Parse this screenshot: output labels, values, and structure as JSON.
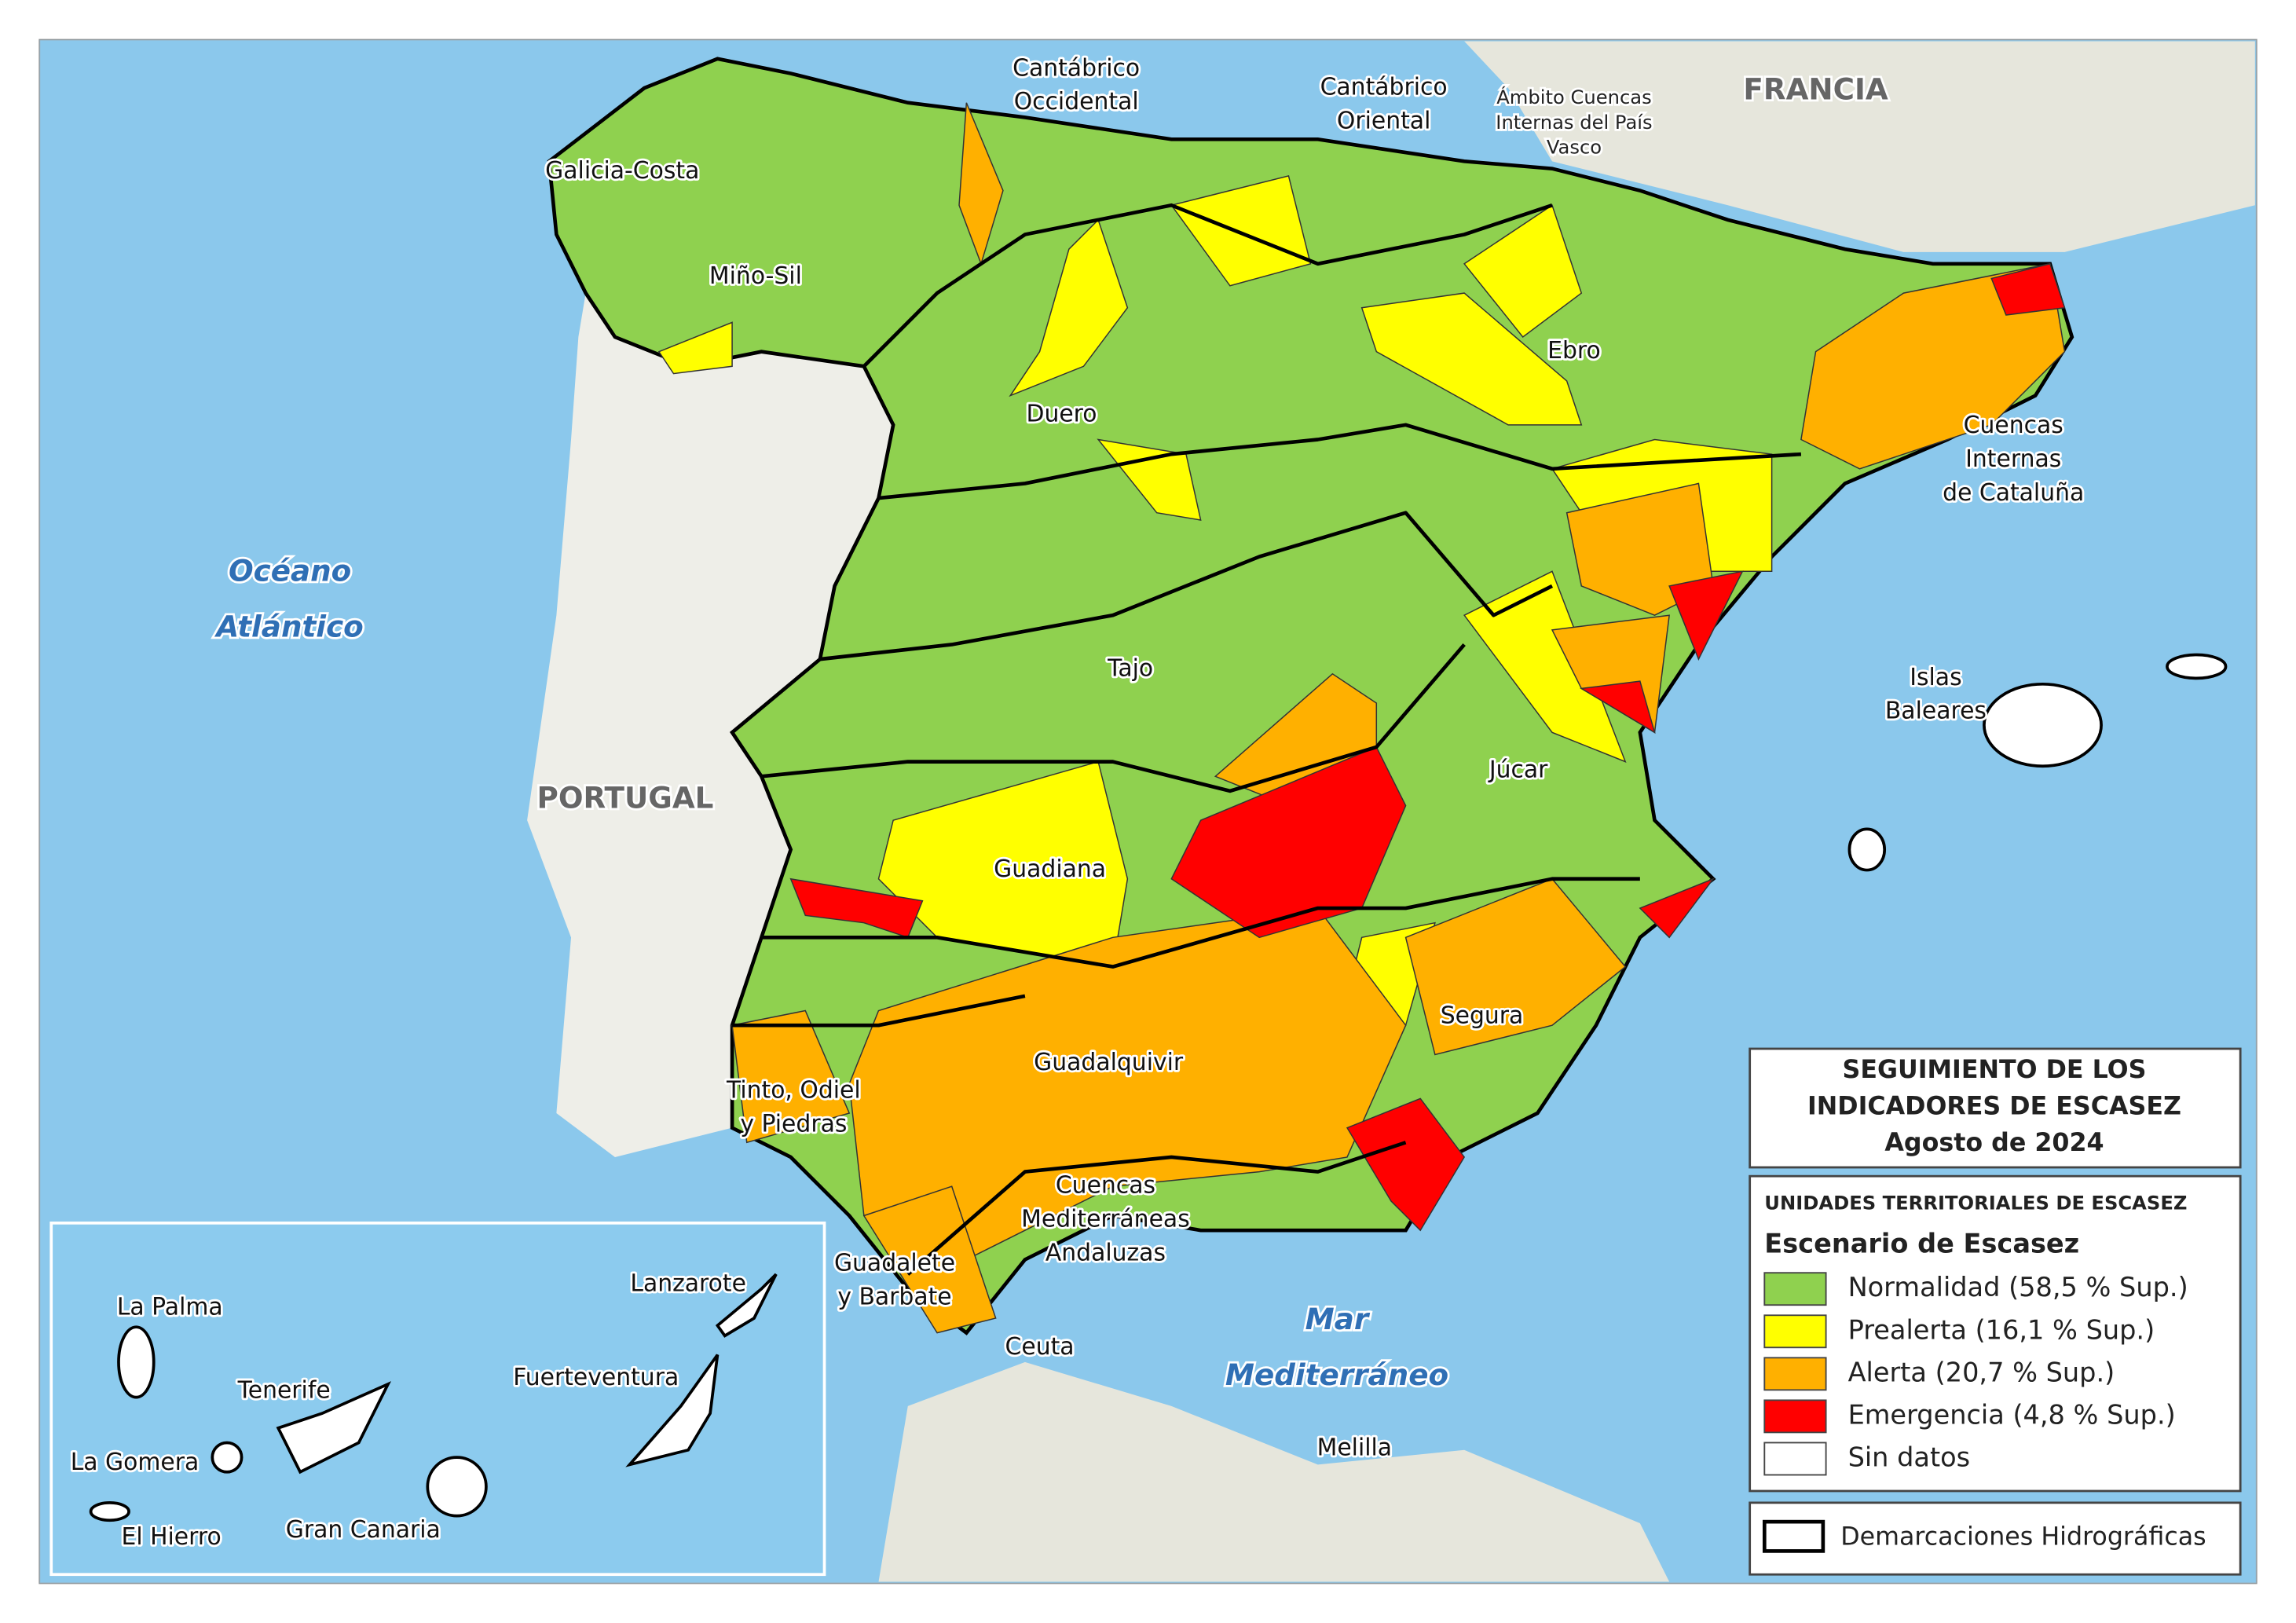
{
  "labels": [
    {
      "kind": "basin",
      "lines": [
        "Cantábrico",
        "Occidental"
      ]
    },
    {
      "kind": "basin",
      "lines": [
        "Cantábrico",
        "Oriental"
      ]
    },
    {
      "kind": "small",
      "lines": [
        "Ámbito Cuencas",
        "Internas del País",
        "Vasco"
      ]
    },
    {
      "kind": "basin",
      "lines": [
        "Galicia-Costa"
      ]
    },
    {
      "kind": "basin",
      "lines": [
        "Miño-Sil"
      ]
    },
    {
      "kind": "basin",
      "lines": [
        "Duero"
      ]
    },
    {
      "kind": "basin",
      "lines": [
        "Ebro"
      ]
    },
    {
      "kind": "basin",
      "lines": [
        "Cuencas",
        "Internas",
        "de Cataluña"
      ]
    },
    {
      "kind": "basin",
      "lines": [
        "Tajo"
      ]
    },
    {
      "kind": "basin",
      "lines": [
        "Júcar"
      ]
    },
    {
      "kind": "basin",
      "lines": [
        "Guadiana"
      ]
    },
    {
      "kind": "basin",
      "lines": [
        "Segura"
      ]
    },
    {
      "kind": "basin",
      "lines": [
        "Guadalquivir"
      ]
    },
    {
      "kind": "basin",
      "lines": [
        "Tinto, Odiel",
        "y Piedras"
      ]
    },
    {
      "kind": "basin",
      "lines": [
        "Cuencas",
        "Mediterráneas",
        "Andaluzas"
      ]
    },
    {
      "kind": "basin",
      "lines": [
        "Guadalete",
        "y Barbate"
      ]
    },
    {
      "kind": "basin",
      "lines": [
        "Islas",
        "Baleares"
      ]
    },
    {
      "kind": "basin",
      "lines": [
        "Ceuta"
      ]
    },
    {
      "kind": "basin",
      "lines": [
        "Melilla"
      ]
    },
    {
      "kind": "country",
      "lines": [
        "FRANCIA"
      ]
    },
    {
      "kind": "country",
      "lines": [
        "PORTUGAL"
      ]
    },
    {
      "kind": "sea",
      "lines": [
        "Océano",
        "Atlántico"
      ]
    },
    {
      "kind": "sea",
      "lines": [
        "Mar",
        "Mediterráneo"
      ]
    },
    {
      "kind": "basin",
      "lines": [
        "La Palma"
      ]
    },
    {
      "kind": "basin",
      "lines": [
        "Tenerife"
      ]
    },
    {
      "kind": "basin",
      "lines": [
        "La Gomera"
      ]
    },
    {
      "kind": "basin",
      "lines": [
        "El Hierro"
      ]
    },
    {
      "kind": "basin",
      "lines": [
        "Gran Canaria"
      ]
    },
    {
      "kind": "basin",
      "lines": [
        "Fuerteventura"
      ]
    },
    {
      "kind": "basin",
      "lines": [
        "Lanzarote"
      ]
    }
  ],
  "legend": {
    "title": [
      "SEGUIMIENTO DE LOS",
      "INDICADORES DE ESCASEZ",
      "Agosto de 2024"
    ],
    "subtitle": "UNIDADES TERRITORIALES DE ESCASEZ",
    "heading": "Escenario de Escasez",
    "items": [
      {
        "label": "Normalidad (58,5 % Sup.)",
        "color": "#8fd14f"
      },
      {
        "label": "Prealerta (16,1 % Sup.)",
        "color": "#ffff00"
      },
      {
        "label": "Alerta (20,7 % Sup.)",
        "color": "#ffb000"
      },
      {
        "label": "Emergencia (4,8 % Sup.)",
        "color": "#ff0000"
      },
      {
        "label": "Sin datos",
        "color": "#ffffff"
      }
    ],
    "boundary": "Demarcaciones Hidrográficas"
  }
}
